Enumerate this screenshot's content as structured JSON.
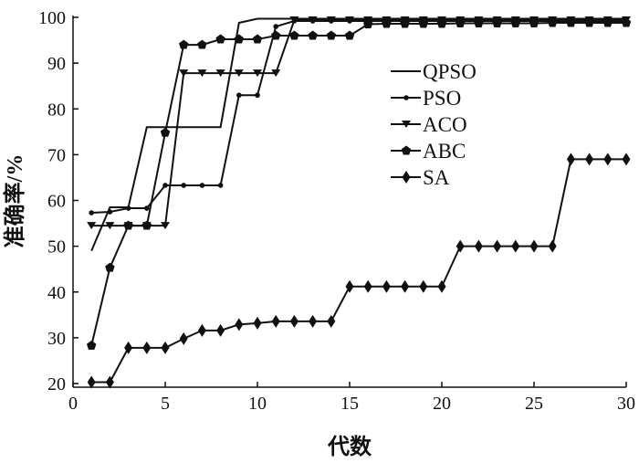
{
  "chart_data": {
    "type": "line",
    "title": "",
    "xlabel": "代数",
    "ylabel": "准确率/%",
    "xlim": [
      0,
      30
    ],
    "ylim": [
      20,
      100
    ],
    "xticks": [
      0,
      5,
      10,
      15,
      20,
      25,
      30
    ],
    "yticks": [
      20,
      30,
      40,
      50,
      60,
      70,
      80,
      90,
      100
    ],
    "grid": false,
    "legend_position": "center-right",
    "x": [
      1,
      2,
      3,
      4,
      5,
      6,
      7,
      8,
      9,
      10,
      11,
      12,
      13,
      14,
      15,
      16,
      17,
      18,
      19,
      20,
      21,
      22,
      23,
      24,
      25,
      26,
      27,
      28,
      29,
      30
    ],
    "series": [
      {
        "name": "QPSO",
        "marker": "none",
        "values": [
          49,
          58.5,
          58.5,
          76,
          76,
          76,
          76,
          76,
          98.8,
          99.7,
          99.7,
          99.7,
          99.7,
          99.7,
          99.7,
          99.7,
          99.7,
          99.7,
          99.7,
          99.7,
          99.7,
          99.7,
          99.7,
          99.7,
          99.7,
          99.7,
          99.7,
          99.7,
          99.7,
          99.7
        ]
      },
      {
        "name": "PSO",
        "marker": "dot",
        "values": [
          57.3,
          57.5,
          58.3,
          58.3,
          63.3,
          63.3,
          63.3,
          63.3,
          83,
          83,
          98,
          99.2,
          99.2,
          99.2,
          99.2,
          99.2,
          99.2,
          99.2,
          99.2,
          99.2,
          99.2,
          99.2,
          99.2,
          99.2,
          99.2,
          99.2,
          99.2,
          99.2,
          99.2,
          99.2
        ]
      },
      {
        "name": "ACO",
        "marker": "triangle-down",
        "values": [
          54.5,
          54.5,
          54.5,
          54.5,
          54.5,
          87.8,
          87.8,
          87.8,
          87.8,
          87.8,
          87.8,
          99.4,
          99.4,
          99.4,
          99.4,
          99.4,
          99.4,
          99.4,
          99.4,
          99.4,
          99.4,
          99.4,
          99.4,
          99.4,
          99.4,
          99.4,
          99.4,
          99.4,
          99.4,
          99.4
        ]
      },
      {
        "name": "ABC",
        "marker": "pentagon",
        "values": [
          28.3,
          45.3,
          54.5,
          54.5,
          74.8,
          94,
          94,
          95.2,
          95.2,
          95.2,
          96,
          96,
          96,
          96,
          96,
          98.5,
          98.6,
          98.6,
          98.6,
          98.6,
          98.7,
          98.7,
          98.7,
          98.7,
          98.7,
          98.8,
          98.8,
          98.8,
          98.8,
          98.8
        ]
      },
      {
        "name": "SA",
        "marker": "diamond",
        "values": [
          20.3,
          20.3,
          27.8,
          27.8,
          27.8,
          29.8,
          31.6,
          31.6,
          32.9,
          33.2,
          33.6,
          33.6,
          33.6,
          33.6,
          41.2,
          41.2,
          41.2,
          41.2,
          41.2,
          41.2,
          50,
          50,
          50,
          50,
          50,
          50,
          69,
          69,
          69,
          69
        ]
      }
    ]
  }
}
